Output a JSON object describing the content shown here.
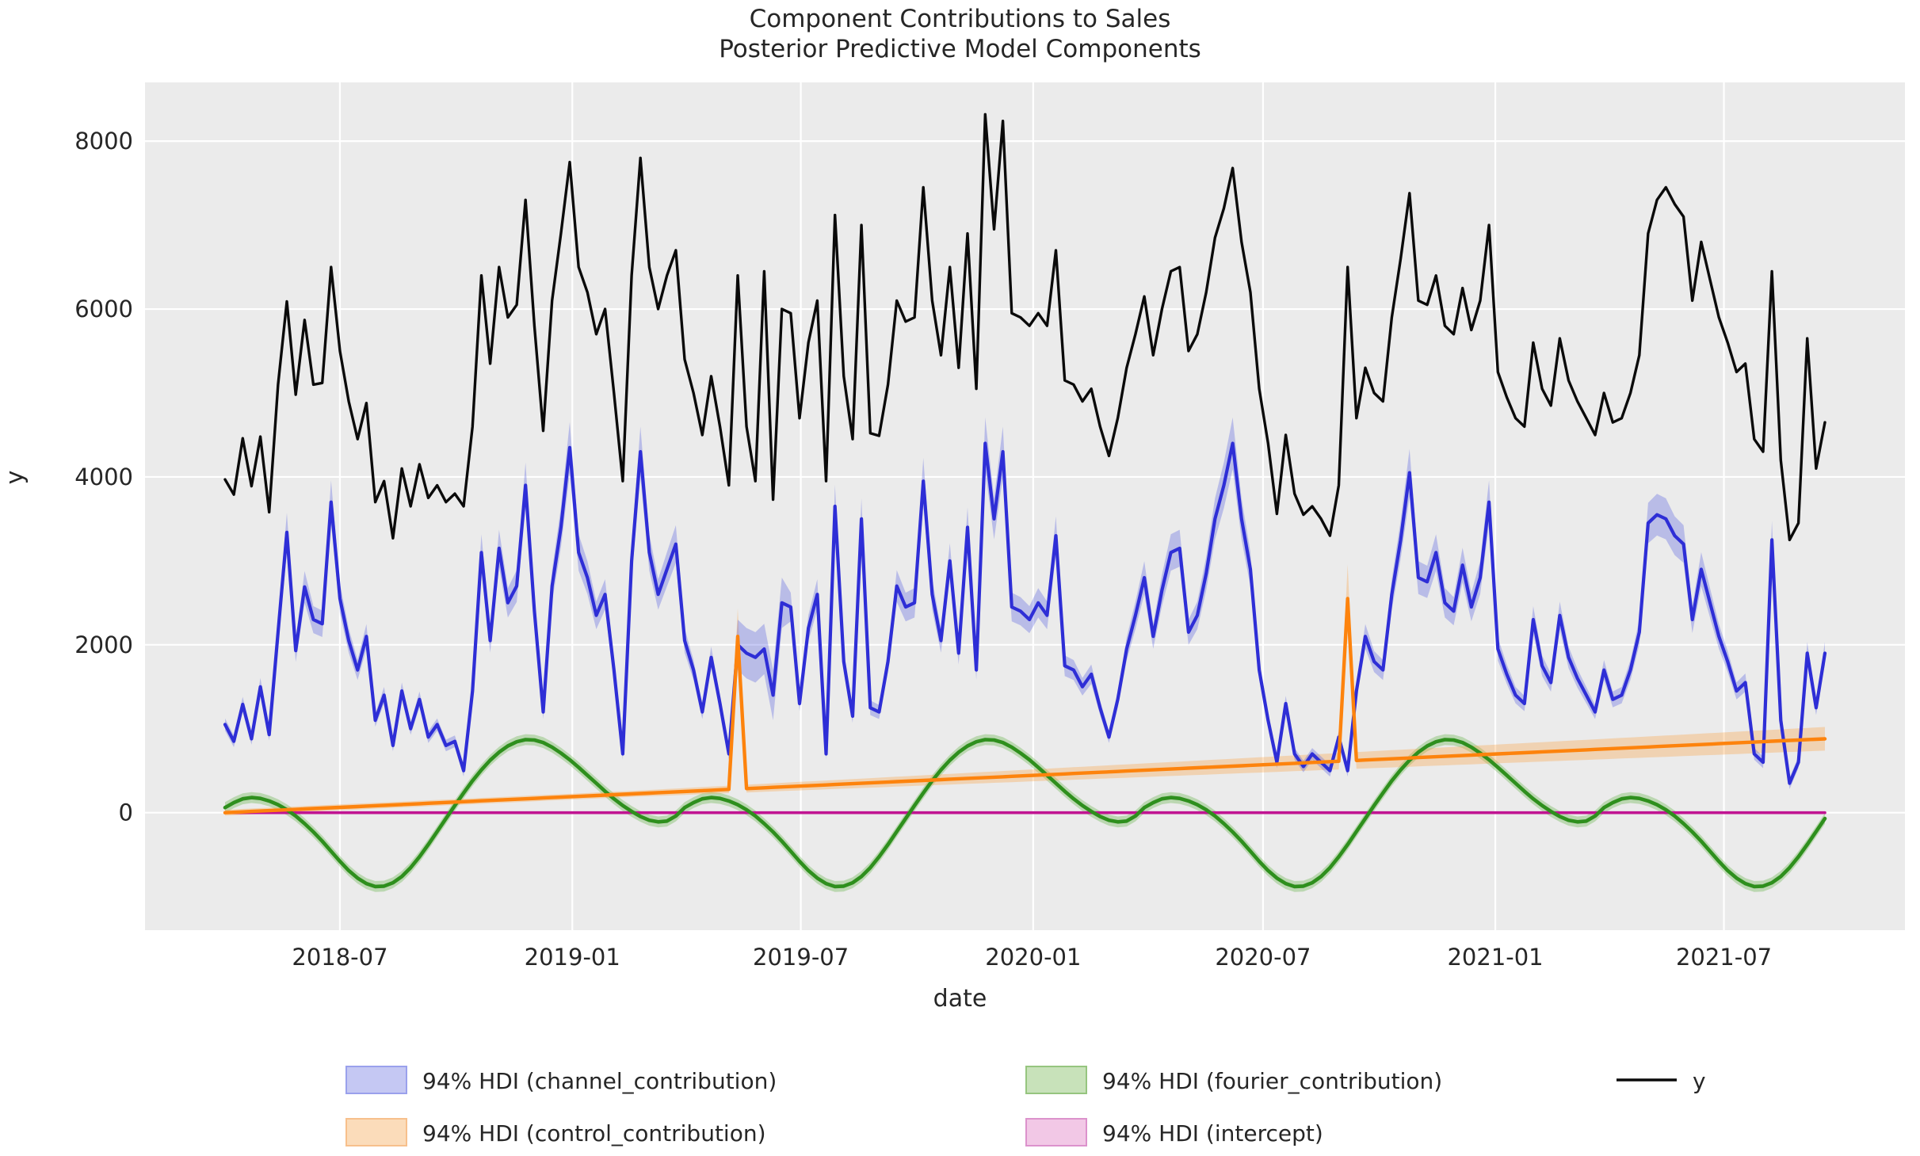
{
  "title": "Component Contributions to Sales",
  "subtitle": "Posterior Predictive Model Components",
  "axes": {
    "xlabel": "date",
    "ylabel": "y",
    "x_tick_labels": [
      "2018-07",
      "2019-01",
      "2019-07",
      "2020-01",
      "2020-07",
      "2021-01",
      "2021-07"
    ],
    "x_tick_weeks": [
      13.0,
      39.29,
      65.14,
      91.43,
      117.43,
      143.71,
      169.57
    ],
    "y_tick_labels": [
      "0",
      "2000",
      "4000",
      "6000",
      "8000"
    ],
    "y_tick_values": [
      0,
      2000,
      4000,
      6000,
      8000
    ],
    "ylim": [
      -1400,
      8700
    ],
    "xlim_weeks": [
      -9.05,
      190.05
    ],
    "grid": "white solid on light-gray axes background"
  },
  "colors": {
    "axes_background": "#ebebeb",
    "grid": "#ffffff",
    "text": "#262626",
    "y_line": "#0a0a0a",
    "channel_line": "#2e2ed6",
    "channel_band": "rgba(85,95,225,0.33)",
    "control_line": "#fd830d",
    "control_band": "rgba(253,160,65,0.33)",
    "fourier_line": "#2e8f1d",
    "fourier_band": "rgba(110,185,85,0.38)",
    "intercept_line": "#c01492",
    "intercept_band": "rgba(222,120,195,0.35)",
    "legend_patches": {
      "channel": {
        "fill": "#c5c8f3",
        "edge": "#9aa1ec"
      },
      "control": {
        "fill": "#fbdcba",
        "edge": "#f7c08c"
      },
      "fourier": {
        "fill": "#c8e2ba",
        "edge": "#96c57f"
      },
      "intercept": {
        "fill": "#f2c8e6",
        "edge": "#dc92cc"
      }
    }
  },
  "legend": [
    {
      "label": "94% HDI (channel_contribution)",
      "swatch": "patch",
      "key": "channel"
    },
    {
      "label": "94% HDI (control_contribution)",
      "swatch": "patch",
      "key": "control"
    },
    {
      "label": "94% HDI (fourier_contribution)",
      "swatch": "patch",
      "key": "fourier"
    },
    {
      "label": "94% HDI (intercept)",
      "swatch": "patch",
      "key": "intercept"
    },
    {
      "label": "y",
      "swatch": "line",
      "key": "y"
    }
  ],
  "chart_data": {
    "type": "line",
    "title": "Component Contributions to Sales — Posterior Predictive Model Components",
    "x_start_date": "2018-04-01",
    "x_step_days": 7,
    "n_points": 182,
    "x_unit": "weekly observations, week index 0 = 2018-04-01, last = 2021-09-19",
    "series_notes": "y = observed sales (black line); channel/control/fourier/intercept are posterior mean component contributions with 94% HDI bands",
    "y_values": [
      3970,
      3790,
      4460,
      3890,
      4480,
      3580,
      5100,
      6090,
      4980,
      5870,
      5100,
      5120,
      6500,
      5500,
      4900,
      4450,
      4880,
      3700,
      3950,
      3270,
      4100,
      3650,
      4150,
      3750,
      3900,
      3700,
      3800,
      3650,
      4600,
      6400,
      5350,
      6500,
      5900,
      6050,
      7300,
      5800,
      4550,
      6100,
      6900,
      7750,
      6500,
      6200,
      5700,
      6000,
      5000,
      3950,
      6400,
      7800,
      6500,
      6000,
      6400,
      6700,
      5400,
      5000,
      4500,
      5200,
      4600,
      3900,
      6400,
      4600,
      3950,
      6450,
      3730,
      6000,
      5950,
      4700,
      5600,
      6100,
      3950,
      7120,
      5200,
      4450,
      7000,
      4520,
      4490,
      5100,
      6100,
      5850,
      5900,
      7450,
      6100,
      5450,
      6500,
      5300,
      6900,
      5050,
      8320,
      6950,
      8240,
      5950,
      5900,
      5800,
      5950,
      5800,
      6700,
      5150,
      5100,
      4900,
      5050,
      4600,
      4250,
      4700,
      5300,
      5700,
      6150,
      5450,
      6000,
      6450,
      6500,
      5500,
      5700,
      6200,
      6850,
      7200,
      7680,
      6800,
      6200,
      5050,
      4400,
      3560,
      4500,
      3800,
      3550,
      3650,
      3500,
      3300,
      3900,
      6500,
      4700,
      5300,
      5000,
      4900,
      5900,
      6600,
      7380,
      6100,
      6050,
      6400,
      5800,
      5700,
      6250,
      5750,
      6100,
      7000,
      5250,
      4950,
      4700,
      4600,
      5600,
      5050,
      4850,
      5650,
      5150,
      4900,
      4700,
      4500,
      5000,
      4650,
      4700,
      5000,
      5450,
      6900,
      7300,
      7450,
      7250,
      7100,
      6100,
      6800,
      6350,
      5900,
      5600,
      5250,
      5350,
      4450,
      4300,
      6450,
      4200,
      3250,
      3450,
      5650,
      4100,
      4650
    ],
    "channel_contribution_mean": [
      1050,
      850,
      1290,
      880,
      1500,
      930,
      2150,
      3340,
      1930,
      2690,
      2300,
      2250,
      3700,
      2550,
      2050,
      1700,
      2100,
      1100,
      1400,
      800,
      1450,
      1000,
      1350,
      900,
      1050,
      800,
      850,
      500,
      1450,
      3100,
      2050,
      3150,
      2500,
      2700,
      3900,
      2400,
      1200,
      2700,
      3400,
      4350,
      3100,
      2800,
      2350,
      2600,
      1700,
      700,
      3000,
      4300,
      3100,
      2600,
      2900,
      3200,
      2050,
      1700,
      1200,
      1850,
      1300,
      700,
      2000,
      1900,
      1850,
      1950,
      1400,
      2500,
      2450,
      1300,
      2200,
      2600,
      700,
      3650,
      1800,
      1150,
      3500,
      1250,
      1200,
      1800,
      2700,
      2450,
      2500,
      3950,
      2600,
      2050,
      3000,
      1900,
      3400,
      1700,
      4400,
      3500,
      4300,
      2450,
      2400,
      2300,
      2500,
      2350,
      3300,
      1750,
      1700,
      1500,
      1650,
      1250,
      900,
      1350,
      1950,
      2350,
      2800,
      2100,
      2650,
      3100,
      3150,
      2150,
      2350,
      2850,
      3500,
      3900,
      4400,
      3500,
      2900,
      1700,
      1100,
      600,
      1300,
      700,
      550,
      700,
      600,
      500,
      900,
      500,
      1450,
      2100,
      1800,
      1700,
      2600,
      3250,
      4050,
      2800,
      2750,
      3100,
      2500,
      2400,
      2950,
      2450,
      2800,
      3700,
      1950,
      1650,
      1400,
      1300,
      2300,
      1750,
      1550,
      2350,
      1850,
      1600,
      1400,
      1200,
      1700,
      1350,
      1400,
      1700,
      2150,
      3450,
      3550,
      3500,
      3300,
      3200,
      2300,
      2900,
      2500,
      2100,
      1800,
      1450,
      1550,
      700,
      600,
      3250,
      1100,
      350,
      600,
      1900,
      1250,
      1900
    ],
    "channel_hdi_rule": {
      "halfwidth": "max(70, 0.07*mean)",
      "wide_weeks_58_to_63_halfwidth": 300
    },
    "control_contribution": {
      "shape": "linear trend with two one-week spikes",
      "start_value": 0,
      "end_value": 880,
      "spikes": [
        {
          "week_index": 58,
          "date": "2019-05-12",
          "mean": 2100
        },
        {
          "week_index": 127,
          "date": "2020-09-06",
          "mean": 2550
        }
      ],
      "hdi_halfwidth_rule": "max(35, 0.16*mean)"
    },
    "fourier_contribution": {
      "shape": "yearly seasonality, repeats every 52 weeks (template week 0 = April 1)",
      "weekly_template": [
        60,
        120,
        165,
        180,
        170,
        140,
        95,
        35,
        -40,
        -130,
        -230,
        -340,
        -460,
        -580,
        -690,
        -780,
        -845,
        -880,
        -875,
        -835,
        -760,
        -655,
        -525,
        -380,
        -225,
        -70,
        85,
        235,
        380,
        510,
        625,
        720,
        795,
        845,
        870,
        865,
        835,
        780,
        710,
        630,
        540,
        445,
        350,
        255,
        165,
        85,
        15,
        -45,
        -90,
        -110,
        -100,
        -40
      ],
      "hdi_halfwidth": 65
    },
    "intercept": {
      "value": 0,
      "hdi_halfwidth": 12
    }
  }
}
